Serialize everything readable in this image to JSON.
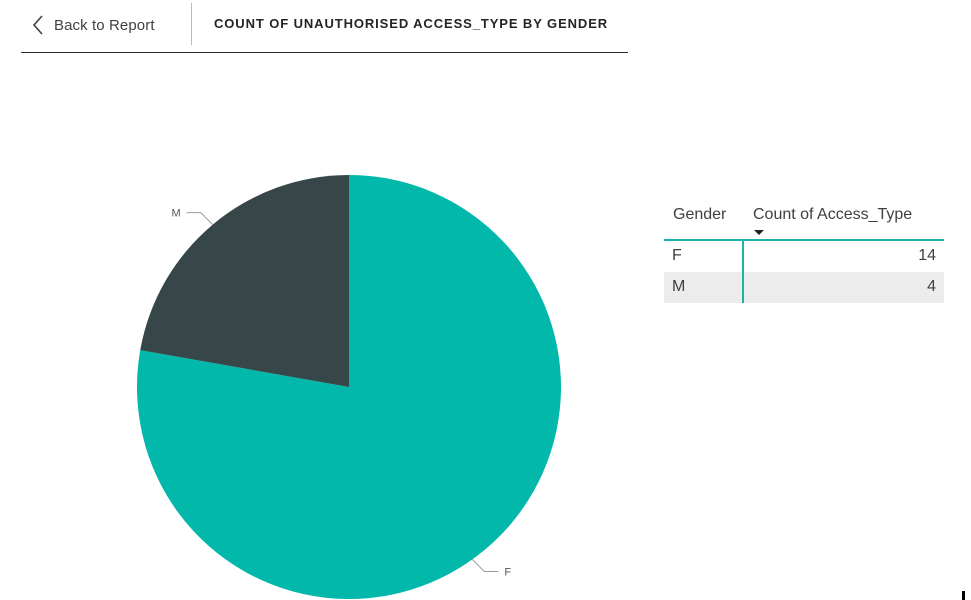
{
  "header": {
    "back_label": "Back to Report",
    "title": "COUNT OF UNAUTHORISED ACCESS_TYPE BY GENDER",
    "back_icon": "chevron-left-icon"
  },
  "colors": {
    "F": "#01b8aa",
    "M": "#374649",
    "accent": "#19b5aa"
  },
  "chart_data": {
    "type": "pie",
    "categories": [
      "F",
      "M"
    ],
    "values": [
      14,
      4
    ],
    "labels": [
      "F",
      "M"
    ],
    "legend": "none"
  },
  "table": {
    "columns": [
      "Gender",
      "Count of Access_Type"
    ],
    "rows": [
      {
        "gender": "F",
        "count": "14"
      },
      {
        "gender": "M",
        "count": "4"
      }
    ]
  }
}
